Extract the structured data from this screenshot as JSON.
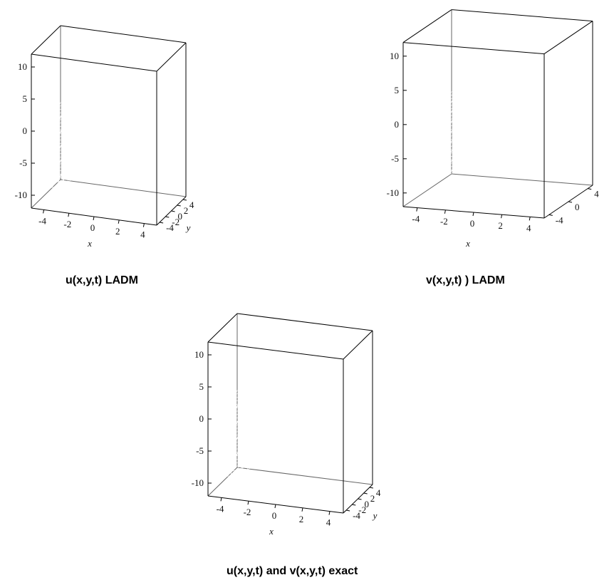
{
  "chart_data": [
    {
      "type": "surface",
      "title": "u(x,y,t) LADM",
      "xlabel": "x",
      "ylabel": "y",
      "x_ticks": [
        "-4",
        "-2",
        "0",
        "2",
        "4"
      ],
      "y_ticks": [
        "-4",
        "-2",
        "0",
        "2",
        "4"
      ],
      "z_ticks": [
        "-10",
        "-5",
        "0",
        "5",
        "10"
      ],
      "xlim": [
        -5,
        5
      ],
      "ylim": [
        -5,
        5
      ],
      "zlim": [
        -12,
        12
      ]
    },
    {
      "type": "surface",
      "title": "v(x,y,t) ) LADM",
      "xlabel": "x",
      "ylabel": "",
      "x_ticks": [
        "-4",
        "-2",
        "0",
        "2",
        "4"
      ],
      "y_ticks": [
        "-4",
        "0",
        "4"
      ],
      "z_ticks": [
        "-10",
        "-5",
        "0",
        "5",
        "10"
      ],
      "xlim": [
        -5,
        5
      ],
      "ylim": [
        -5,
        5
      ],
      "zlim": [
        -12,
        12
      ]
    },
    {
      "type": "surface",
      "title": "u(x,y,t) and v(x,y,t) exact",
      "xlabel": "x",
      "ylabel": "y",
      "x_ticks": [
        "-4",
        "-2",
        "0",
        "2",
        "4"
      ],
      "y_ticks": [
        "-4",
        "-2",
        "0",
        "2",
        "4"
      ],
      "z_ticks": [
        "-10",
        "-5",
        "0",
        "5",
        "10"
      ],
      "xlim": [
        -5,
        5
      ],
      "ylim": [
        -5,
        5
      ],
      "zlim": [
        -12,
        12
      ]
    }
  ],
  "colors": {
    "surface_low": "#c864d0",
    "surface_mid": "#5ec0b8",
    "surface_high": "#9a9a9a"
  }
}
